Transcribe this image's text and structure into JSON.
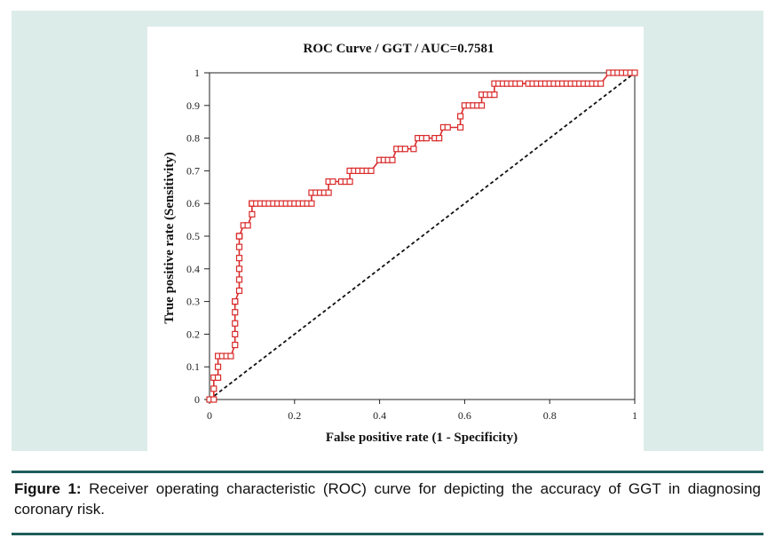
{
  "figure": {
    "caption_label": "Figure 1:",
    "caption_text": "Receiver operating characteristic (ROC) curve for depicting the accuracy of GGT in diagnosing coronary risk."
  },
  "colors": {
    "panel_background": "#dcece9",
    "roc_curve": "#d92b2b",
    "reference_line": "#111111",
    "rule": "#1e5d5a"
  },
  "chart_data": {
    "type": "line",
    "title": "ROC Curve / GGT / AUC=0.7581",
    "xlabel": "False positive rate (1 - Specificity)",
    "ylabel": "True positive rate (Sensitivity)",
    "xlim": [
      0,
      1
    ],
    "ylim": [
      0,
      1
    ],
    "x_ticks": [
      "0",
      "0.2",
      "0.4",
      "0.6",
      "0.8",
      "1"
    ],
    "y_ticks": [
      "0",
      "0.1",
      "0.2",
      "0.3",
      "0.4",
      "0.5",
      "0.6",
      "0.7",
      "0.8",
      "0.9",
      "1"
    ],
    "grid": false,
    "legend": "none",
    "series": [
      {
        "style": "step line with hollow square markers",
        "x": [
          0,
          0.01,
          0.01,
          0.01,
          0.02,
          0.02,
          0.02,
          0.03,
          0.04,
          0.05,
          0.06,
          0.06,
          0.06,
          0.06,
          0.06,
          0.06,
          0.07,
          0.07,
          0.07,
          0.07,
          0.07,
          0.07,
          0.07,
          0.07,
          0.07,
          0.08,
          0.09,
          0.1,
          0.1,
          0.1,
          0.1,
          0.11,
          0.12,
          0.13,
          0.14,
          0.15,
          0.16,
          0.17,
          0.18,
          0.19,
          0.2,
          0.21,
          0.22,
          0.23,
          0.24,
          0.24,
          0.25,
          0.26,
          0.27,
          0.28,
          0.28,
          0.29,
          0.31,
          0.32,
          0.33,
          0.33,
          0.34,
          0.35,
          0.36,
          0.37,
          0.38,
          0.4,
          0.41,
          0.42,
          0.43,
          0.44,
          0.45,
          0.46,
          0.48,
          0.49,
          0.5,
          0.51,
          0.53,
          0.54,
          0.55,
          0.56,
          0.59,
          0.59,
          0.6,
          0.61,
          0.62,
          0.63,
          0.64,
          0.64,
          0.65,
          0.66,
          0.67,
          0.67,
          0.68,
          0.69,
          0.7,
          0.71,
          0.72,
          0.73,
          0.75,
          0.76,
          0.77,
          0.78,
          0.79,
          0.8,
          0.81,
          0.82,
          0.83,
          0.84,
          0.85,
          0.86,
          0.87,
          0.88,
          0.89,
          0.9,
          0.91,
          0.92,
          0.94,
          0.95,
          0.96,
          0.97,
          0.98,
          0.99,
          1
        ],
        "y": [
          0,
          0,
          0.033,
          0.067,
          0.067,
          0.1,
          0.133,
          0.133,
          0.133,
          0.133,
          0.167,
          0.2,
          0.233,
          0.267,
          0.3,
          0.3,
          0.333,
          0.367,
          0.4,
          0.433,
          0.467,
          0.5,
          0.5,
          0.5,
          0.5,
          0.533,
          0.533,
          0.567,
          0.6,
          0.6,
          0.6,
          0.6,
          0.6,
          0.6,
          0.6,
          0.6,
          0.6,
          0.6,
          0.6,
          0.6,
          0.6,
          0.6,
          0.6,
          0.6,
          0.6,
          0.633,
          0.633,
          0.633,
          0.633,
          0.633,
          0.667,
          0.667,
          0.667,
          0.667,
          0.667,
          0.7,
          0.7,
          0.7,
          0.7,
          0.7,
          0.7,
          0.733,
          0.733,
          0.733,
          0.733,
          0.767,
          0.767,
          0.767,
          0.767,
          0.8,
          0.8,
          0.8,
          0.8,
          0.8,
          0.833,
          0.833,
          0.833,
          0.867,
          0.9,
          0.9,
          0.9,
          0.9,
          0.9,
          0.933,
          0.933,
          0.933,
          0.933,
          0.967,
          0.967,
          0.967,
          0.967,
          0.967,
          0.967,
          0.967,
          0.967,
          0.967,
          0.967,
          0.967,
          0.967,
          0.967,
          0.967,
          0.967,
          0.967,
          0.967,
          0.967,
          0.967,
          0.967,
          0.967,
          0.967,
          0.967,
          0.967,
          0.967,
          1,
          1,
          1,
          1,
          1,
          1,
          1
        ]
      },
      {
        "style": "dashed diagonal reference line",
        "x": [
          0,
          1
        ],
        "y": [
          0,
          1
        ]
      }
    ]
  }
}
